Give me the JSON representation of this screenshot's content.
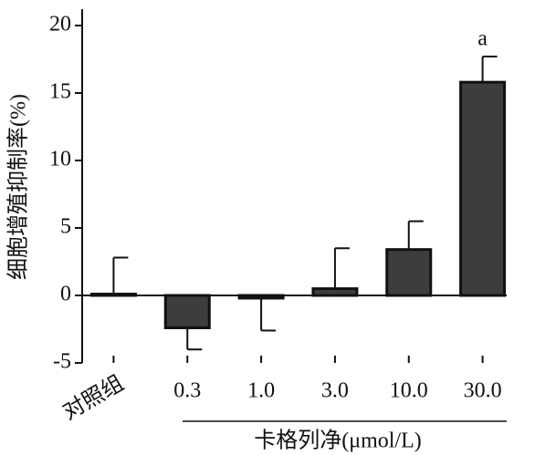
{
  "chart_data": {
    "type": "bar",
    "y_label": "细胞增殖抑制率(%)",
    "x_group_label": "卡格列净(μmol/L)",
    "categories": [
      "对照组",
      "0.3",
      "1.0",
      "3.0",
      "10.0",
      "30.0"
    ],
    "values": [
      0.1,
      -2.4,
      -0.2,
      0.5,
      3.4,
      15.8
    ],
    "errors": [
      2.7,
      1.6,
      2.4,
      3.0,
      2.1,
      1.9
    ],
    "annotations": [
      null,
      null,
      null,
      null,
      null,
      "a"
    ],
    "color": "#3d3d3d",
    "ylim": [
      -5,
      20
    ],
    "yticks": [
      -5,
      0,
      5,
      10,
      15,
      20
    ],
    "grid": false
  }
}
